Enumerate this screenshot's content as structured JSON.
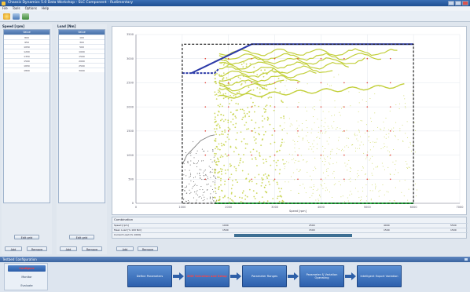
{
  "window": {
    "title": "Chassis Dynamics 5.0 Data Workshop - SLC Component - Rudimentary"
  },
  "menu": [
    "File",
    "Tools",
    "Options",
    "Help"
  ],
  "speed_panel": {
    "title": "Speed [rpm]",
    "header": "Value",
    "rows": [
      "800",
      "950",
      "1050",
      "1200",
      "1350",
      "1500",
      "1650",
      "1800"
    ],
    "edit_label": "Edit grid",
    "add_label": "Add",
    "remove_label": "Remove"
  },
  "load_panel": {
    "title": "Load [Nm]",
    "header": "Value",
    "rows": [
      "100",
      "300",
      "500",
      "1000",
      "1500",
      "2000",
      "2500",
      "3000"
    ],
    "edit_label": "Edit grid",
    "add_label": "Add",
    "remove_label": "Remove"
  },
  "chart_controls": {
    "add_label": "Add",
    "remove_label": "Remove"
  },
  "chart_data": {
    "type": "scatter",
    "xlabel": "Speed [rpm]",
    "ylabel": "",
    "xlim": [
      0,
      7000
    ],
    "ylim": [
      0,
      3500
    ],
    "x_ticks": [
      "0",
      "1000",
      "2000",
      "3000",
      "4000",
      "5000",
      "6000",
      "7000"
    ],
    "y_ticks": [
      "0",
      "500",
      "1000",
      "1500",
      "2000",
      "2500",
      "3000",
      "3500"
    ],
    "grid": true,
    "series": [
      {
        "style": "solid",
        "color": "#2c3aa8",
        "x": [
          1200,
          2500,
          6000
        ],
        "y": [
          2700,
          3300,
          3300
        ]
      },
      {
        "style": "dashed",
        "color": "#2c3aa8",
        "x": [
          1000,
          1700,
          1800
        ],
        "y": [
          2700,
          2700,
          2800
        ]
      },
      {
        "style": "solid",
        "color": "#2fb84a",
        "x": [
          1700,
          6000
        ],
        "y": [
          0,
          0
        ]
      },
      {
        "style": "solid",
        "color": "#7d7d7d",
        "x": [
          1000,
          1100,
          1250,
          1400,
          1600,
          1700
        ],
        "y": [
          800,
          1000,
          1150,
          1300,
          1400,
          1420
        ]
      }
    ],
    "boundary": {
      "style": "dashed",
      "color": "#111111",
      "x": [
        1000,
        1000,
        6000,
        6000,
        1000
      ],
      "y": [
        0,
        3300,
        3300,
        0,
        0
      ]
    },
    "operating_points_color": "#c2cf3a",
    "grid_points_color": "#e2473c"
  },
  "combination": {
    "title": "Combination",
    "rows": [
      {
        "name": "Speed [rpm]",
        "values": [
          "1000",
          "2500",
          "4000",
          "5500"
        ]
      },
      {
        "name": "Mean Load [% 100 Nm]",
        "values": [
          "1500",
          "1500",
          "1500",
          "1500"
        ]
      },
      {
        "name": "Current Load [% 1000]",
        "values": [
          "",
          "",
          "",
          ""
        ]
      }
    ]
  },
  "config_bar": {
    "title": "Testbed Configuration"
  },
  "side_list": [
    "Configure",
    "Monitor",
    "Evaluate"
  ],
  "steps": [
    "Define Parameters",
    "DOE Selection and Setup",
    "Parameter Ranges",
    "Parameter & Variation Operating",
    "Intelligent Export Variation"
  ]
}
